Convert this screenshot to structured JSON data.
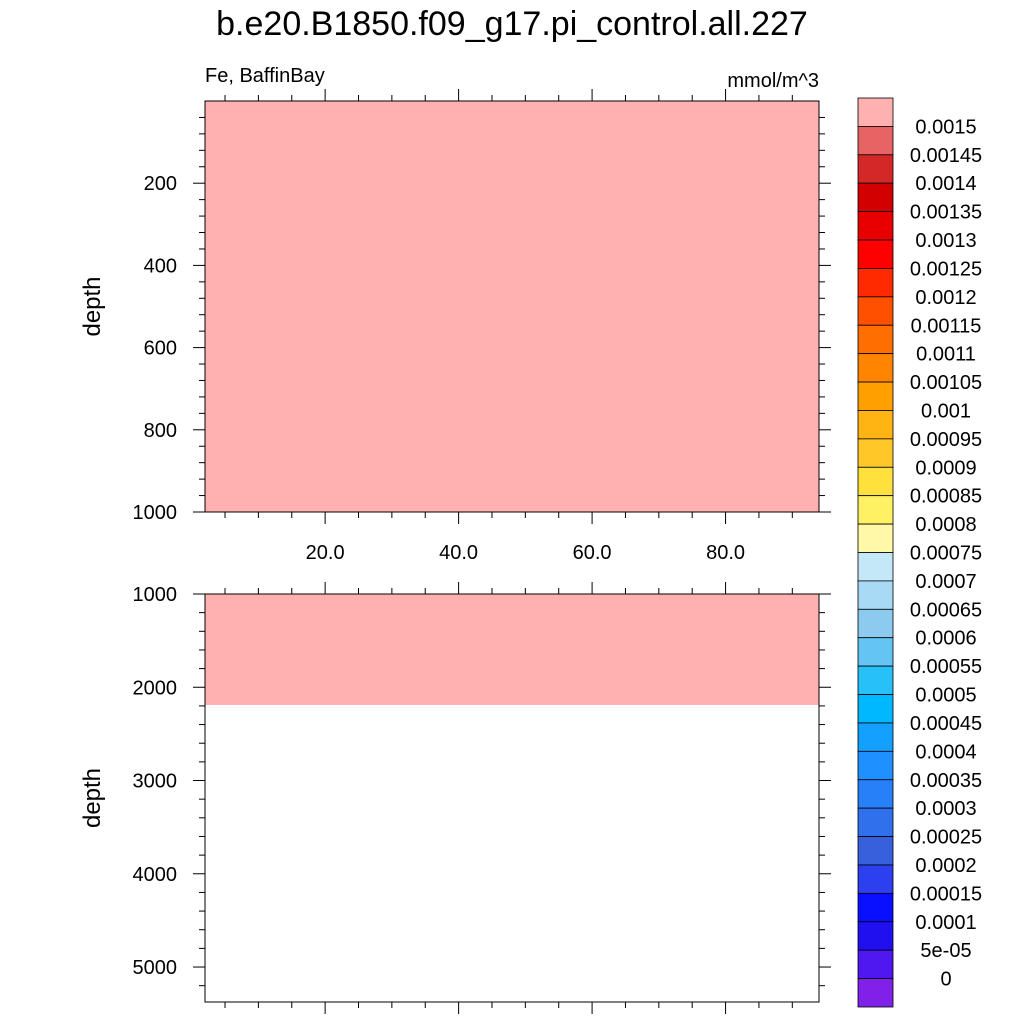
{
  "chart_data": {
    "type": "heatmap",
    "title": "b.e20.B1850.f09_g17.pi_control.all.227",
    "subtitle_left": "Fe, BaffinBay",
    "subtitle_right": "mmol/m^3",
    "fill_color": "#ffb0b0",
    "panels": [
      {
        "id": "upper",
        "ylabel": "depth",
        "xlim": [
          2,
          94
        ],
        "ylim": [
          1000,
          0
        ],
        "yticks": [
          200,
          400,
          600,
          800,
          1000
        ],
        "ytick_labels": [
          "200",
          "400",
          "600",
          "800",
          "1000"
        ],
        "xticks": [
          20,
          40,
          60,
          80
        ],
        "xtick_labels": [
          "20.0",
          "40.0",
          "60.0",
          "80.0"
        ],
        "fill_from": 0,
        "fill_to": 1000,
        "fill_value": 0.0015
      },
      {
        "id": "lower",
        "ylabel": "depth",
        "xlim": [
          2,
          94
        ],
        "ylim": [
          5375,
          1000
        ],
        "yticks": [
          1000,
          2000,
          3000,
          4000,
          5000
        ],
        "ytick_labels": [
          "1000",
          "2000",
          "3000",
          "4000",
          "5000"
        ],
        "xticks": [
          20,
          40,
          60,
          80
        ],
        "xtick_labels": [],
        "fill_from": 1000,
        "fill_to": 2190,
        "fill_value": 0.0015
      }
    ],
    "colorbar": {
      "labels": [
        "0.0015",
        "0.00145",
        "0.0014",
        "0.00135",
        "0.0013",
        "0.00125",
        "0.0012",
        "0.00115",
        "0.0011",
        "0.00105",
        "0.001",
        "0.00095",
        "0.0009",
        "0.00085",
        "0.0008",
        "0.00075",
        "0.0007",
        "0.00065",
        "0.0006",
        "0.00055",
        "0.0005",
        "0.00045",
        "0.0004",
        "0.00035",
        "0.0003",
        "0.00025",
        "0.0002",
        "0.00015",
        "0.0001",
        "5e-05",
        "0"
      ],
      "colors": [
        "#ffb0b0",
        "#e86464",
        "#d42828",
        "#d20000",
        "#e80000",
        "#ff0000",
        "#ff2a00",
        "#ff5000",
        "#ff6e00",
        "#ff8400",
        "#ffa000",
        "#ffb414",
        "#ffc828",
        "#ffe03c",
        "#fff064",
        "#fff8a8",
        "#c4e8f8",
        "#a8daf6",
        "#8ccaf0",
        "#64c4f4",
        "#28c0f8",
        "#00b8ff",
        "#14a0ff",
        "#1e90ff",
        "#2880f8",
        "#3070ec",
        "#3860dc",
        "#2c40f0",
        "#0810ff",
        "#2010f0",
        "#5018f0",
        "#8020e8"
      ]
    }
  }
}
